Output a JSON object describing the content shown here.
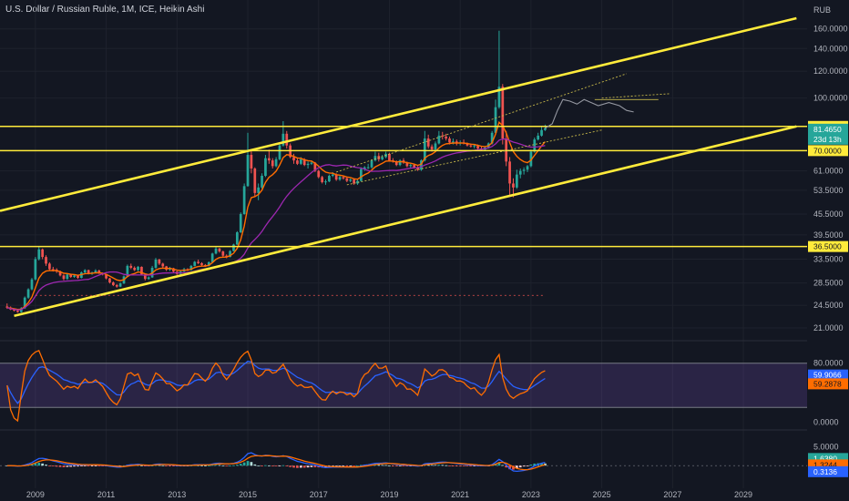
{
  "title": "U.S. Dollar / Russian Ruble, 1M, ICE, Heikin Ashi",
  "currency": "RUB",
  "chart_data": [
    {
      "type": "candlestick",
      "pane": "price",
      "scale": "log",
      "y_ticks": [
        "160.0000",
        "140.0000",
        "120.0000",
        "100.0000",
        "61.0000",
        "53.5000",
        "45.5000",
        "39.5000",
        "33.5000",
        "28.5000",
        "24.5000",
        "21.0000"
      ],
      "x_ticks": [
        "2009",
        "2011",
        "2013",
        "2015",
        "2017",
        "2019",
        "2021",
        "2023",
        "2025",
        "2027",
        "2029"
      ],
      "horizontal_levels": [
        {
          "label": "82.5000",
          "value": 82.5
        },
        {
          "label": "70.0000",
          "value": 70
        },
        {
          "label": "36.5000",
          "value": 36.5
        }
      ],
      "last_price": {
        "label": "81.4650",
        "value": 81.465,
        "countdown": "23d 13h"
      },
      "ylim": [
        19.5,
        172
      ],
      "xlim": [
        2008.0,
        2030.8
      ],
      "candles": [
        [
          2008.2,
          24.3,
          24.8,
          23.9,
          24.1
        ],
        [
          2008.3,
          24.1,
          24.3,
          23.7,
          23.8
        ],
        [
          2008.4,
          23.8,
          23.9,
          23.5,
          23.6
        ],
        [
          2008.5,
          23.6,
          23.7,
          23.3,
          23.4
        ],
        [
          2008.6,
          23.4,
          24.2,
          23.3,
          24.0
        ],
        [
          2008.7,
          24.0,
          26.0,
          23.9,
          25.8
        ],
        [
          2008.8,
          25.8,
          27.5,
          25.6,
          27.3
        ],
        [
          2008.9,
          27.3,
          29.5,
          27.1,
          29.2
        ],
        [
          2009.0,
          29.2,
          34.0,
          29.0,
          33.5
        ],
        [
          2009.1,
          33.5,
          36.4,
          33.2,
          35.8
        ],
        [
          2009.2,
          35.8,
          36.0,
          33.5,
          34.0
        ],
        [
          2009.3,
          34.0,
          34.4,
          32.0,
          32.5
        ],
        [
          2009.4,
          32.5,
          32.8,
          31.0,
          31.3
        ],
        [
          2009.5,
          31.3,
          31.8,
          30.8,
          31.2
        ],
        [
          2009.6,
          31.2,
          31.5,
          30.5,
          30.8
        ],
        [
          2009.7,
          30.8,
          31.0,
          29.8,
          30.0
        ],
        [
          2009.8,
          30.0,
          30.2,
          29.0,
          29.3
        ],
        [
          2009.9,
          29.3,
          30.4,
          29.1,
          30.2
        ],
        [
          2010.0,
          30.2,
          30.3,
          29.5,
          29.7
        ],
        [
          2010.1,
          29.7,
          30.2,
          29.5,
          30.0
        ],
        [
          2010.2,
          30.0,
          30.1,
          29.3,
          29.5
        ],
        [
          2010.3,
          29.5,
          30.8,
          29.4,
          30.6
        ],
        [
          2010.4,
          30.6,
          31.3,
          30.4,
          31.1
        ],
        [
          2010.5,
          31.1,
          31.2,
          30.2,
          30.4
        ],
        [
          2010.6,
          30.4,
          30.8,
          30.1,
          30.6
        ],
        [
          2010.7,
          30.6,
          31.3,
          30.5,
          31.0
        ],
        [
          2010.8,
          31.0,
          31.2,
          30.3,
          30.5
        ],
        [
          2010.9,
          30.5,
          30.6,
          30.0,
          30.2
        ],
        [
          2011.0,
          30.2,
          30.3,
          29.2,
          29.4
        ],
        [
          2011.1,
          29.4,
          29.5,
          28.4,
          28.6
        ],
        [
          2011.2,
          28.6,
          28.8,
          27.9,
          28.1
        ],
        [
          2011.3,
          28.1,
          28.3,
          27.6,
          27.8
        ],
        [
          2011.4,
          27.8,
          28.6,
          27.7,
          28.4
        ],
        [
          2011.5,
          28.4,
          30.0,
          28.3,
          29.8
        ],
        [
          2011.6,
          29.8,
          32.3,
          29.7,
          32.0
        ],
        [
          2011.7,
          32.0,
          32.5,
          31.3,
          31.6
        ],
        [
          2011.8,
          31.6,
          31.9,
          30.9,
          31.1
        ],
        [
          2011.9,
          31.1,
          32.0,
          30.9,
          31.8
        ],
        [
          2012.0,
          31.8,
          31.9,
          30.0,
          30.2
        ],
        [
          2012.1,
          30.2,
          30.3,
          29.0,
          29.3
        ],
        [
          2012.2,
          29.3,
          29.8,
          29.1,
          29.6
        ],
        [
          2012.3,
          29.6,
          32.0,
          29.5,
          31.6
        ],
        [
          2012.4,
          31.6,
          33.8,
          31.4,
          33.4
        ],
        [
          2012.5,
          33.4,
          33.6,
          32.2,
          32.5
        ],
        [
          2012.6,
          32.5,
          32.7,
          31.6,
          31.9
        ],
        [
          2012.7,
          31.9,
          32.0,
          30.9,
          31.2
        ],
        [
          2012.8,
          31.2,
          31.8,
          30.9,
          31.5
        ],
        [
          2012.9,
          31.5,
          31.6,
          30.6,
          30.8
        ],
        [
          2013.0,
          30.8,
          30.9,
          30.1,
          30.3
        ],
        [
          2013.1,
          30.3,
          31.0,
          30.2,
          30.8
        ],
        [
          2013.2,
          30.8,
          31.6,
          30.7,
          31.3
        ],
        [
          2013.3,
          31.3,
          31.5,
          30.9,
          31.1
        ],
        [
          2013.4,
          31.1,
          32.2,
          31.0,
          32.0
        ],
        [
          2013.5,
          32.0,
          33.1,
          31.9,
          32.9
        ],
        [
          2013.6,
          32.9,
          33.4,
          32.4,
          32.6
        ],
        [
          2013.7,
          32.6,
          32.8,
          32.0,
          32.2
        ],
        [
          2013.8,
          32.2,
          32.4,
          31.8,
          32.0
        ],
        [
          2013.9,
          32.0,
          33.0,
          31.9,
          32.8
        ],
        [
          2014.0,
          32.8,
          35.0,
          32.7,
          34.8
        ],
        [
          2014.1,
          34.8,
          36.5,
          34.6,
          36.0
        ],
        [
          2014.2,
          36.0,
          36.2,
          35.0,
          35.3
        ],
        [
          2014.3,
          35.3,
          35.5,
          34.0,
          34.3
        ],
        [
          2014.4,
          34.3,
          34.6,
          33.7,
          34.0
        ],
        [
          2014.5,
          34.0,
          35.6,
          33.9,
          35.4
        ],
        [
          2014.6,
          35.4,
          37.2,
          35.3,
          37.0
        ],
        [
          2014.7,
          37.0,
          40.5,
          36.9,
          40.2
        ],
        [
          2014.8,
          40.2,
          46.0,
          40.0,
          45.5
        ],
        [
          2014.9,
          45.5,
          56.0,
          45.3,
          55.0
        ],
        [
          2015.0,
          55.0,
          79.0,
          54.8,
          68.0
        ],
        [
          2015.1,
          68.0,
          70.5,
          60.0,
          62.0
        ],
        [
          2015.2,
          62.0,
          62.5,
          51.0,
          52.5
        ],
        [
          2015.3,
          52.5,
          56.0,
          50.0,
          54.5
        ],
        [
          2015.4,
          54.5,
          60.0,
          54.0,
          59.0
        ],
        [
          2015.5,
          59.0,
          68.0,
          58.5,
          66.5
        ],
        [
          2015.6,
          66.5,
          70.5,
          64.0,
          65.5
        ],
        [
          2015.7,
          65.5,
          66.5,
          62.0,
          63.0
        ],
        [
          2015.8,
          63.0,
          67.0,
          62.5,
          66.0
        ],
        [
          2015.9,
          66.0,
          73.5,
          65.5,
          72.5
        ],
        [
          2016.0,
          72.5,
          85.5,
          72.0,
          78.5
        ],
        [
          2016.1,
          78.5,
          80.0,
          71.0,
          72.5
        ],
        [
          2016.2,
          72.5,
          73.5,
          66.5,
          67.0
        ],
        [
          2016.3,
          67.0,
          68.5,
          64.0,
          65.5
        ],
        [
          2016.4,
          65.5,
          66.5,
          63.5,
          64.0
        ],
        [
          2016.5,
          64.0,
          67.0,
          63.5,
          66.0
        ],
        [
          2016.6,
          66.0,
          66.5,
          63.0,
          63.5
        ],
        [
          2016.7,
          63.5,
          65.0,
          62.0,
          64.0
        ],
        [
          2016.8,
          64.0,
          65.5,
          63.5,
          64.5
        ],
        [
          2016.9,
          64.5,
          64.8,
          60.5,
          61.0
        ],
        [
          2017.0,
          61.0,
          61.5,
          58.0,
          58.5
        ],
        [
          2017.1,
          58.5,
          59.0,
          56.0,
          56.5
        ],
        [
          2017.2,
          56.5,
          57.5,
          55.5,
          56.8
        ],
        [
          2017.3,
          56.8,
          59.5,
          56.5,
          59.0
        ],
        [
          2017.4,
          59.0,
          60.5,
          58.5,
          59.5
        ],
        [
          2017.5,
          59.5,
          60.0,
          57.0,
          57.5
        ],
        [
          2017.6,
          57.5,
          59.0,
          57.0,
          58.5
        ],
        [
          2017.7,
          58.5,
          59.0,
          57.5,
          58.0
        ],
        [
          2017.8,
          58.0,
          58.5,
          56.5,
          57.0
        ],
        [
          2017.9,
          57.0,
          58.0,
          56.5,
          57.5
        ],
        [
          2018.0,
          57.5,
          58.0,
          55.5,
          56.0
        ],
        [
          2018.1,
          56.0,
          57.5,
          55.5,
          57.0
        ],
        [
          2018.2,
          57.0,
          62.5,
          56.8,
          61.8
        ],
        [
          2018.3,
          61.8,
          63.0,
          61.0,
          62.5
        ],
        [
          2018.4,
          62.5,
          64.0,
          61.8,
          62.5
        ],
        [
          2018.5,
          62.5,
          66.0,
          62.0,
          65.5
        ],
        [
          2018.6,
          65.5,
          69.5,
          65.0,
          67.5
        ],
        [
          2018.7,
          67.5,
          69.0,
          65.0,
          66.0
        ],
        [
          2018.8,
          66.0,
          68.0,
          65.5,
          67.0
        ],
        [
          2018.9,
          67.0,
          69.5,
          66.5,
          68.5
        ],
        [
          2019.0,
          68.5,
          69.0,
          65.0,
          65.5
        ],
        [
          2019.1,
          65.5,
          66.5,
          64.5,
          65.0
        ],
        [
          2019.2,
          65.0,
          65.5,
          63.0,
          63.5
        ],
        [
          2019.3,
          63.5,
          66.0,
          63.0,
          65.5
        ],
        [
          2019.4,
          65.5,
          66.5,
          64.0,
          64.5
        ],
        [
          2019.5,
          64.5,
          65.0,
          62.5,
          63.0
        ],
        [
          2019.6,
          63.0,
          64.0,
          62.0,
          63.5
        ],
        [
          2019.7,
          63.5,
          64.0,
          62.0,
          62.5
        ],
        [
          2019.8,
          62.5,
          63.0,
          61.0,
          61.5
        ],
        [
          2019.9,
          61.5,
          66.0,
          61.0,
          65.5
        ],
        [
          2020.0,
          65.5,
          80.0,
          65.0,
          76.0
        ],
        [
          2020.1,
          76.0,
          78.0,
          71.0,
          72.0
        ],
        [
          2020.2,
          72.0,
          73.0,
          69.5,
          70.5
        ],
        [
          2020.3,
          70.5,
          74.5,
          70.0,
          73.5
        ],
        [
          2020.4,
          73.5,
          80.0,
          73.0,
          77.5
        ],
        [
          2020.5,
          77.5,
          79.5,
          75.5,
          77.0
        ],
        [
          2020.6,
          77.0,
          78.5,
          75.0,
          76.0
        ],
        [
          2020.7,
          76.0,
          77.0,
          73.0,
          74.0
        ],
        [
          2020.8,
          74.0,
          76.0,
          73.0,
          74.5
        ],
        [
          2020.9,
          74.5,
          75.5,
          72.5,
          73.5
        ],
        [
          2021.0,
          73.5,
          75.0,
          72.5,
          74.0
        ],
        [
          2021.1,
          74.0,
          75.5,
          73.0,
          73.5
        ],
        [
          2021.2,
          73.5,
          74.0,
          72.0,
          72.5
        ],
        [
          2021.3,
          72.5,
          73.5,
          71.5,
          72.0
        ],
        [
          2021.4,
          72.0,
          73.0,
          71.0,
          72.5
        ],
        [
          2021.5,
          72.5,
          73.0,
          70.5,
          71.0
        ],
        [
          2021.6,
          71.0,
          72.0,
          70.0,
          70.5
        ],
        [
          2021.7,
          70.5,
          72.0,
          70.0,
          71.5
        ],
        [
          2021.8,
          71.5,
          74.0,
          71.0,
          73.5
        ],
        [
          2021.9,
          73.5,
          80.0,
          73.0,
          79.0
        ],
        [
          2022.0,
          79.0,
          99.0,
          78.5,
          94.0
        ],
        [
          2022.1,
          94.0,
          158.0,
          93.0,
          108.0
        ],
        [
          2022.2,
          108.0,
          110.0,
          73.0,
          76.0
        ],
        [
          2022.3,
          76.0,
          80.0,
          63.0,
          65.0
        ],
        [
          2022.4,
          65.0,
          67.0,
          51.5,
          56.0
        ],
        [
          2022.5,
          56.0,
          58.0,
          51.0,
          54.5
        ],
        [
          2022.6,
          54.5,
          61.5,
          54.0,
          59.5
        ],
        [
          2022.7,
          59.5,
          62.0,
          58.0,
          61.0
        ],
        [
          2022.8,
          61.0,
          62.5,
          59.5,
          61.5
        ],
        [
          2022.9,
          61.5,
          63.5,
          60.5,
          63.0
        ],
        [
          2023.0,
          63.0,
          70.5,
          62.5,
          69.5
        ],
        [
          2023.1,
          69.5,
          76.5,
          69.0,
          75.5
        ],
        [
          2023.2,
          75.5,
          79.0,
          75.0,
          77.5
        ],
        [
          2023.3,
          77.5,
          82.5,
          77.0,
          80.5
        ],
        [
          2023.4,
          80.5,
          83.5,
          80.0,
          81.5
        ]
      ]
    },
    {
      "type": "line",
      "pane": "rsi",
      "ylim": [
        -8,
        108
      ],
      "y_ticks": [
        "80.0000",
        "0.0000"
      ],
      "band": [
        80,
        20
      ],
      "series": [
        {
          "value_label": "59.9066",
          "color": "#2962ff"
        },
        {
          "value_label": "59.2878",
          "color": "#ff6d00"
        }
      ]
    },
    {
      "type": "bar",
      "pane": "macd",
      "ylim": [
        -6,
        9
      ],
      "y_ticks": [
        "5.0000"
      ],
      "series": [
        {
          "value_label": "1.6380",
          "color": "#26a69a"
        },
        {
          "value_label": "1.3244",
          "color": "#ff6d00"
        },
        {
          "value_label": "0.3136",
          "color": "#2962ff"
        }
      ]
    }
  ]
}
